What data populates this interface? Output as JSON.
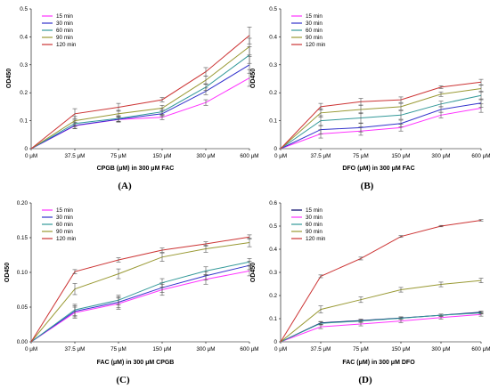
{
  "colors": {
    "magenta": "#ff33ff",
    "blue": "#3333cc",
    "teal": "#339999",
    "olive": "#999933",
    "red": "#cc3333",
    "navy": "#000066",
    "grid": "#000000"
  },
  "chart_data": [
    {
      "type": "line",
      "panel": "(A)",
      "xlabel": "CPGB (μM) in 300 μM FAC",
      "ylabel": "OD450",
      "categories": [
        "0 μM",
        "37.5 μM",
        "75 μM",
        "150 μM",
        "300 μM",
        "600 μM"
      ],
      "ylim": [
        0,
        0.5
      ],
      "yticks": [
        "0",
        "0.1",
        "0.2",
        "0.3",
        "0.4",
        "0.5"
      ],
      "legend_position": "top-left",
      "series": [
        {
          "name": "15 min",
          "color": "magenta",
          "values": [
            0,
            0.082,
            0.104,
            0.112,
            0.165,
            0.253
          ],
          "errors": [
            0,
            0.01,
            0.008,
            0.008,
            0.01,
            0.03
          ]
        },
        {
          "name": "30 min",
          "color": "blue",
          "values": [
            0,
            0.083,
            0.105,
            0.125,
            0.205,
            0.3
          ],
          "errors": [
            0,
            0.012,
            0.01,
            0.01,
            0.012,
            0.03
          ]
        },
        {
          "name": "60 min",
          "color": "teal",
          "values": [
            0,
            0.09,
            0.108,
            0.132,
            0.22,
            0.335
          ],
          "errors": [
            0,
            0.012,
            0.01,
            0.01,
            0.012,
            0.03
          ]
        },
        {
          "name": "90 min",
          "color": "olive",
          "values": [
            0,
            0.1,
            0.125,
            0.145,
            0.245,
            0.365
          ],
          "errors": [
            0,
            0.015,
            0.012,
            0.01,
            0.015,
            0.03
          ]
        },
        {
          "name": "120 min",
          "color": "red",
          "values": [
            0,
            0.125,
            0.148,
            0.175,
            0.275,
            0.405
          ],
          "errors": [
            0,
            0.018,
            0.014,
            0.008,
            0.015,
            0.03
          ]
        }
      ]
    },
    {
      "type": "line",
      "panel": "(B)",
      "xlabel": "DFO (μM) in 300 μM FAC",
      "ylabel": "OD450",
      "categories": [
        "0 μM",
        "37.5 μM",
        "75 μM",
        "150 μM",
        "300 μM",
        "600 μM"
      ],
      "ylim": [
        0,
        0.5
      ],
      "yticks": [
        "0",
        "0.1",
        "0.2",
        "0.3",
        "0.4",
        "0.5"
      ],
      "legend_position": "top-left",
      "series": [
        {
          "name": "15 min",
          "color": "magenta",
          "values": [
            0,
            0.053,
            0.063,
            0.075,
            0.12,
            0.145
          ],
          "errors": [
            0,
            0.015,
            0.015,
            0.012,
            0.01,
            0.015
          ]
        },
        {
          "name": "30 min",
          "color": "blue",
          "values": [
            0,
            0.068,
            0.075,
            0.09,
            0.14,
            0.163
          ],
          "errors": [
            0,
            0.015,
            0.015,
            0.012,
            0.01,
            0.015
          ]
        },
        {
          "name": "60 min",
          "color": "teal",
          "values": [
            0,
            0.1,
            0.11,
            0.12,
            0.16,
            0.19
          ],
          "errors": [
            0,
            0.018,
            0.018,
            0.015,
            0.01,
            0.015
          ]
        },
        {
          "name": "90 min",
          "color": "olive",
          "values": [
            0,
            0.128,
            0.14,
            0.15,
            0.195,
            0.215
          ],
          "errors": [
            0,
            0.015,
            0.015,
            0.012,
            0.008,
            0.012
          ]
        },
        {
          "name": "120 min",
          "color": "red",
          "values": [
            0,
            0.15,
            0.168,
            0.175,
            0.22,
            0.238
          ],
          "errors": [
            0,
            0.012,
            0.012,
            0.01,
            0.005,
            0.01
          ]
        }
      ]
    },
    {
      "type": "line",
      "panel": "(C)",
      "xlabel": "FAC (μM) in 300 μM CPGB",
      "ylabel": "OD450",
      "categories": [
        "0 μM",
        "37.5 μM",
        "75 μM",
        "150 μM",
        "300 μM",
        "600 μM"
      ],
      "ylim": [
        0,
        0.2
      ],
      "yticks": [
        "0.00",
        "0.05",
        "0.10",
        "0.15",
        "0.20"
      ],
      "legend_position": "top-left",
      "series": [
        {
          "name": "15  min",
          "color": "magenta",
          "values": [
            0,
            0.042,
            0.055,
            0.075,
            0.09,
            0.102
          ],
          "errors": [
            0,
            0.008,
            0.008,
            0.008,
            0.007,
            0.007
          ]
        },
        {
          "name": "30  min",
          "color": "blue",
          "values": [
            0,
            0.044,
            0.057,
            0.078,
            0.095,
            0.11
          ],
          "errors": [
            0,
            0.008,
            0.008,
            0.007,
            0.006,
            0.006
          ]
        },
        {
          "name": "60  min",
          "color": "teal",
          "values": [
            0,
            0.046,
            0.06,
            0.085,
            0.102,
            0.115
          ],
          "errors": [
            0,
            0.008,
            0.007,
            0.006,
            0.006,
            0.005
          ]
        },
        {
          "name": "90  min",
          "color": "olive",
          "values": [
            0,
            0.076,
            0.098,
            0.122,
            0.134,
            0.143
          ],
          "errors": [
            0,
            0.008,
            0.007,
            0.006,
            0.005,
            0.006
          ]
        },
        {
          "name": "120 min",
          "color": "red",
          "values": [
            0,
            0.101,
            0.118,
            0.132,
            0.141,
            0.151
          ],
          "errors": [
            0,
            0.003,
            0.003,
            0.003,
            0.003,
            0.003
          ]
        }
      ]
    },
    {
      "type": "line",
      "panel": "(D)",
      "xlabel": "FAC (μM) in 300 μM DFO",
      "ylabel": "OD450",
      "categories": [
        "0 μM",
        "37.5 μM",
        "75 μM",
        "150 μM",
        "300 μM",
        "600 μM"
      ],
      "ylim": [
        0,
        0.6
      ],
      "yticks": [
        "0",
        "0.1",
        "0.2",
        "0.3",
        "0.4",
        "0.5",
        "0.6"
      ],
      "legend_position": "top-left",
      "series": [
        {
          "name": "15 min",
          "color": "navy",
          "values": [
            0,
            0.082,
            0.092,
            0.103,
            0.115,
            0.128
          ],
          "errors": [
            0,
            0.006,
            0.006,
            0.005,
            0.005,
            0.005
          ]
        },
        {
          "name": "30 min",
          "color": "magenta",
          "values": [
            0,
            0.065,
            0.077,
            0.09,
            0.105,
            0.118
          ],
          "errors": [
            0,
            0.008,
            0.008,
            0.007,
            0.007,
            0.007
          ]
        },
        {
          "name": "60 min",
          "color": "teal",
          "values": [
            0,
            0.08,
            0.09,
            0.102,
            0.115,
            0.125
          ],
          "errors": [
            0,
            0.006,
            0.006,
            0.005,
            0.005,
            0.005
          ]
        },
        {
          "name": "90 min",
          "color": "olive",
          "values": [
            0,
            0.14,
            0.182,
            0.225,
            0.248,
            0.265
          ],
          "errors": [
            0,
            0.015,
            0.012,
            0.01,
            0.01,
            0.01
          ]
        },
        {
          "name": "120 min",
          "color": "red",
          "values": [
            0,
            0.283,
            0.36,
            0.455,
            0.5,
            0.525
          ],
          "errors": [
            0,
            0.006,
            0.006,
            0.004,
            0.003,
            0.003
          ]
        }
      ]
    }
  ]
}
